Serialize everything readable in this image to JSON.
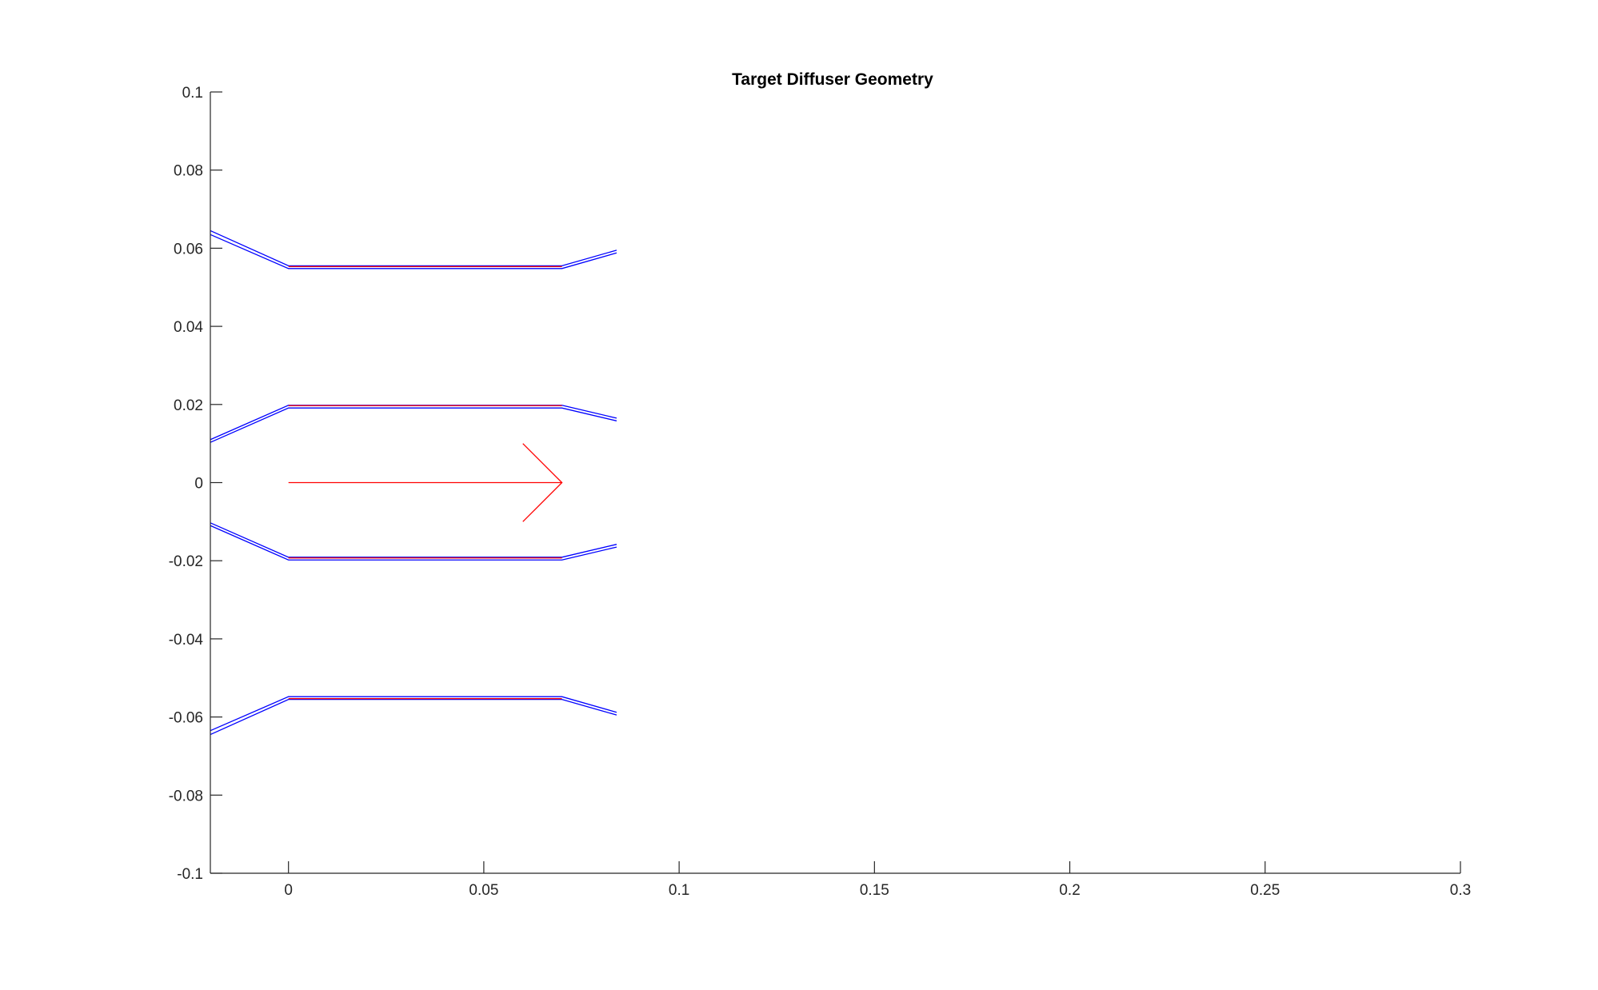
{
  "chart_data": {
    "type": "line",
    "title": "Target Diffuser Geometry",
    "xlabel": "",
    "ylabel": "",
    "xlim": [
      -0.02,
      0.3
    ],
    "ylim": [
      -0.1,
      0.1
    ],
    "x_ticks": [
      "0",
      "0.05",
      "0.1",
      "0.15",
      "0.2",
      "0.25",
      "0.3"
    ],
    "y_ticks": [
      "0.1",
      "0.08",
      "0.06",
      "0.04",
      "0.02",
      "0",
      "-0.02",
      "-0.04",
      "-0.06",
      "-0.08",
      "-0.1"
    ],
    "grid": false,
    "legend": "none",
    "colors": {
      "walls": "#0000ff",
      "target": "#ff0000",
      "axes": "#262626"
    },
    "series": [
      {
        "color": "#0000ff",
        "points": [
          [
            -0.02,
            0.0645
          ],
          [
            0.0,
            0.0555
          ],
          [
            0.07,
            0.0555
          ],
          [
            0.084,
            0.0595
          ]
        ]
      },
      {
        "color": "#0000ff",
        "points": [
          [
            -0.02,
            0.0635
          ],
          [
            0.0,
            0.0548
          ],
          [
            0.07,
            0.0548
          ],
          [
            0.084,
            0.0588
          ]
        ]
      },
      {
        "color": "#0000ff",
        "points": [
          [
            -0.02,
            0.011
          ],
          [
            0.0,
            0.0198
          ],
          [
            0.07,
            0.0198
          ],
          [
            0.084,
            0.0165
          ]
        ]
      },
      {
        "color": "#0000ff",
        "points": [
          [
            -0.02,
            0.0103
          ],
          [
            0.0,
            0.0191
          ],
          [
            0.07,
            0.0191
          ],
          [
            0.084,
            0.0158
          ]
        ]
      },
      {
        "color": "#0000ff",
        "points": [
          [
            -0.02,
            -0.0103
          ],
          [
            0.0,
            -0.0191
          ],
          [
            0.07,
            -0.0191
          ],
          [
            0.084,
            -0.0158
          ]
        ]
      },
      {
        "color": "#0000ff",
        "points": [
          [
            -0.02,
            -0.011
          ],
          [
            0.0,
            -0.0198
          ],
          [
            0.07,
            -0.0198
          ],
          [
            0.084,
            -0.0165
          ]
        ]
      },
      {
        "color": "#0000ff",
        "points": [
          [
            -0.02,
            -0.0635
          ],
          [
            0.0,
            -0.0548
          ],
          [
            0.07,
            -0.0548
          ],
          [
            0.084,
            -0.0588
          ]
        ]
      },
      {
        "color": "#0000ff",
        "points": [
          [
            -0.02,
            -0.0645
          ],
          [
            0.0,
            -0.0555
          ],
          [
            0.07,
            -0.0555
          ],
          [
            0.084,
            -0.0595
          ]
        ]
      },
      {
        "color": "#ff0000",
        "points": [
          [
            0.0,
            0.0553
          ],
          [
            0.07,
            0.0553
          ]
        ]
      },
      {
        "color": "#ff0000",
        "points": [
          [
            0.0,
            0.0197
          ],
          [
            0.07,
            0.0197
          ]
        ]
      },
      {
        "color": "#ff0000",
        "points": [
          [
            0.0,
            -0.0193
          ],
          [
            0.07,
            -0.0193
          ]
        ]
      },
      {
        "color": "#ff0000",
        "points": [
          [
            0.0,
            -0.0553
          ],
          [
            0.07,
            -0.0553
          ]
        ]
      },
      {
        "color": "#ff0000",
        "points": [
          [
            0.0,
            0.0
          ],
          [
            0.07,
            0.0
          ]
        ]
      },
      {
        "color": "#ff0000",
        "points": [
          [
            0.06,
            0.01
          ],
          [
            0.07,
            0.0
          ],
          [
            0.06,
            -0.01
          ]
        ]
      }
    ]
  }
}
